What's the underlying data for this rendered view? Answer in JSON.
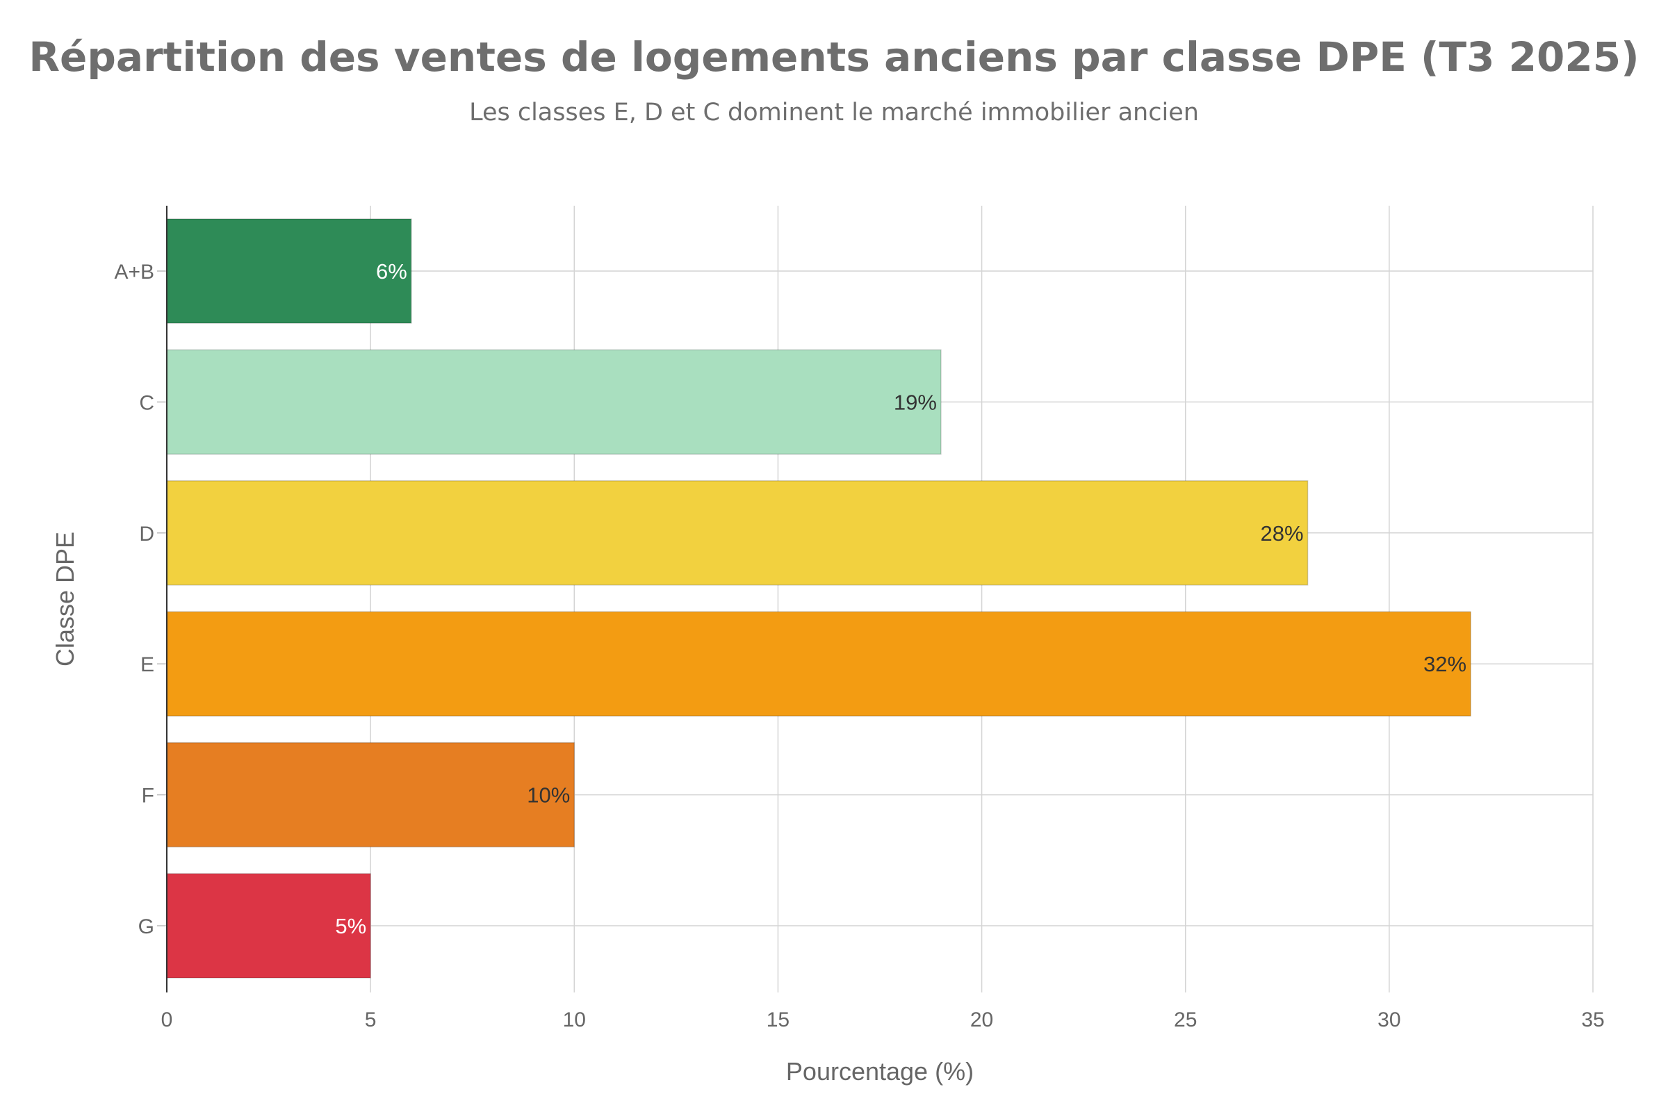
{
  "chart_data": {
    "type": "bar",
    "orientation": "horizontal",
    "title": "Répartition des ventes de logements anciens par classe DPE (T3 2025)",
    "subtitle": "Les classes E, D et C dominent le marché immobilier ancien",
    "xlabel": "Pourcentage (%)",
    "ylabel": "Classe DPE",
    "xlim": [
      0,
      35
    ],
    "x_ticks": [
      0,
      5,
      10,
      15,
      20,
      25,
      30,
      35
    ],
    "grid": true,
    "categories": [
      "A+B",
      "C",
      "D",
      "E",
      "F",
      "G"
    ],
    "values": [
      6,
      19,
      28,
      32,
      10,
      5
    ],
    "data_labels": [
      "6%",
      "19%",
      "28%",
      "32%",
      "10%",
      "5%"
    ],
    "colors": [
      "#2e8b57",
      "#a9dfbf",
      "#f2d13f",
      "#f39c12",
      "#e67e22",
      "#dc3545"
    ],
    "label_colors": [
      "#ffffff",
      "#333333",
      "#333333",
      "#333333",
      "#333333",
      "#ffffff"
    ]
  }
}
